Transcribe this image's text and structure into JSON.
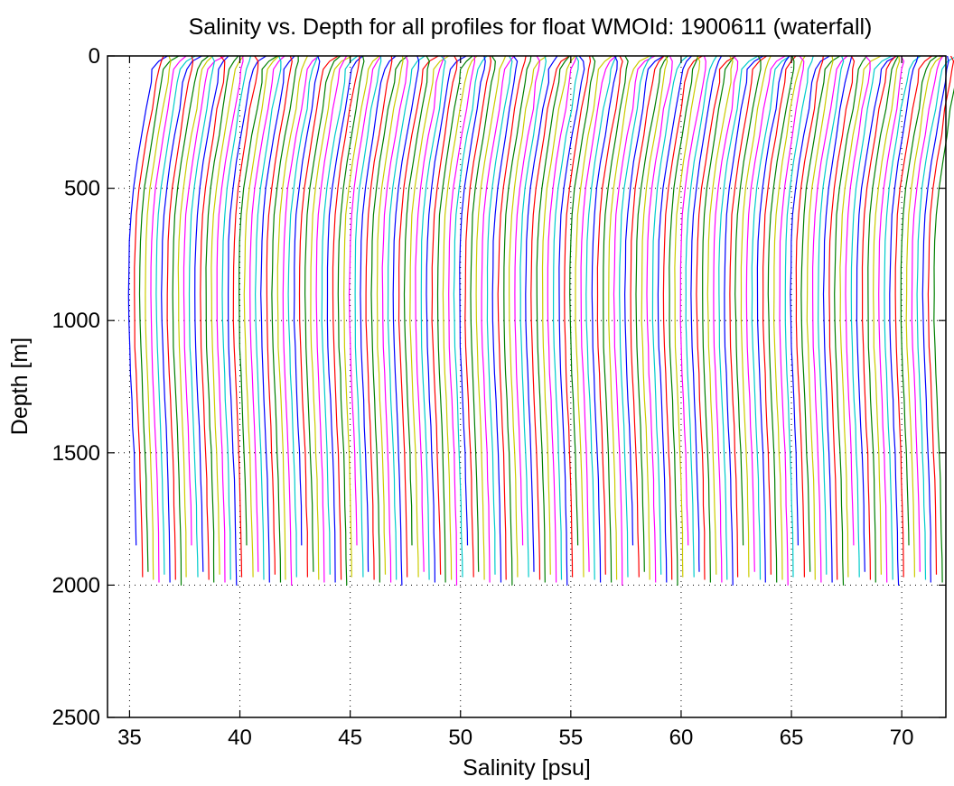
{
  "chart_data": {
    "type": "line",
    "title": "Salinity vs. Depth for all profiles for float WMOId: 1900611 (waterfall)",
    "xlabel": "Salinity [psu]",
    "ylabel": "Depth [m]",
    "xlim": [
      34,
      72
    ],
    "ylim": [
      0,
      2500
    ],
    "y_reversed": true,
    "grid": "dotted",
    "xticks": [
      35,
      40,
      45,
      50,
      55,
      60,
      65,
      70
    ],
    "yticks": [
      0,
      500,
      1000,
      1500,
      2000,
      2500
    ],
    "colors": [
      "#0000ff",
      "#ff0000",
      "#008000",
      "#cccc00",
      "#ff00ff",
      "#00cccc"
    ],
    "waterfall": {
      "profile_count": 147,
      "first_offset_psu": 35.0,
      "step_psu": 0.25,
      "base_profile": {
        "depth_m": [
          0,
          50,
          100,
          200,
          300,
          400,
          500,
          600,
          700,
          800,
          900,
          1000,
          1100,
          1200,
          1300,
          1400,
          1500,
          1600,
          1700,
          1800,
          1900,
          2000
        ],
        "salinity_anomaly_psu": [
          1.15,
          1.05,
          0.95,
          0.75,
          0.55,
          0.35,
          0.18,
          0.06,
          0.0,
          -0.03,
          -0.04,
          -0.03,
          0.0,
          0.05,
          0.1,
          0.15,
          0.2,
          0.24,
          0.27,
          0.3,
          0.32,
          0.34
        ]
      },
      "profile_max_depth_m": [
        1850,
        1970,
        1950,
        1980,
        1990,
        1960,
        1990,
        1980,
        2000,
        1970
      ]
    }
  }
}
